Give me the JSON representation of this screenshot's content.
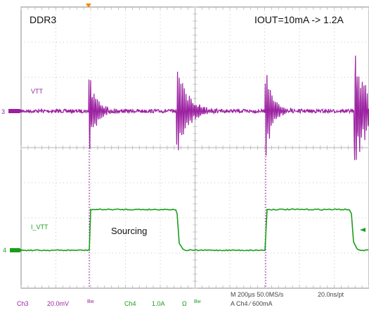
{
  "screen": {
    "title_left": "DDR3",
    "title_right": "IOUT=10mA -> 1.2A",
    "annotation": "Sourcing"
  },
  "channels": {
    "ch3": {
      "label": "VTT",
      "marker": "3",
      "color": "#9b1fa0"
    },
    "ch4": {
      "label": "I_VTT",
      "marker": "4",
      "color": "#1a9e1a"
    }
  },
  "status_bar": {
    "ch3_name": "Ch3",
    "ch3_scale": "20.0mV",
    "ch3_bw": "Bw",
    "ch4_name": "Ch4",
    "ch4_scale": "1.0A",
    "ch4_unit": "Ω",
    "ch4_bw": "Bw",
    "timebase": "M 200µs 50.0MS/s",
    "sample_interval": "20.0ns/pt",
    "trigger": "A  Ch4  ⁄  600mA"
  },
  "colors": {
    "grid": "#b5b5b5",
    "frame": "#8a8a8a",
    "trigger_marker": "#f08a00"
  }
}
